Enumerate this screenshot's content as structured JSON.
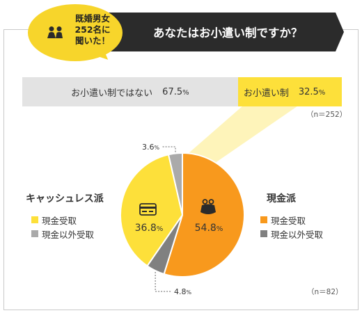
{
  "badge": {
    "line1": "既婚男女",
    "line2": "252名に",
    "line3": "聞いた！"
  },
  "header": {
    "question": "あなたはお小遣い制ですか？"
  },
  "colors": {
    "yellow": "#fde03a",
    "bubble": "#f7d52b",
    "orange": "#f8991d",
    "gray": "#aaaaaa",
    "light_gray": "#e3e3e3",
    "dark": "#2b2b2b"
  },
  "chart_data": [
    {
      "type": "bar",
      "orientation": "horizontal-stacked",
      "categories": [
        "お小遣い制ではない",
        "お小遣い制"
      ],
      "values": [
        67.5,
        32.5
      ],
      "unit": "%",
      "note": "（n＝252）"
    },
    {
      "type": "pie",
      "slices": [
        {
          "label": "現金派",
          "value": 54.8,
          "sub": "現金受取",
          "color": "#f8991d"
        },
        {
          "label": "現金派",
          "value": 4.8,
          "sub": "現金以外受取",
          "color": "#808080"
        },
        {
          "label": "キャッシュレス派",
          "value": 36.8,
          "sub": "現金受取",
          "color": "#fde03a"
        },
        {
          "label": "キャッシュレス派",
          "value": 3.6,
          "sub": "現金以外受取",
          "color": "#aaaaaa"
        }
      ],
      "unit": "%",
      "note": "（n＝82）"
    }
  ],
  "legend_left": {
    "title": "キャッシュレス派",
    "items": [
      {
        "label": "現金受取",
        "color": "#fde03a"
      },
      {
        "label": "現金以外受取",
        "color": "#aaaaaa"
      }
    ]
  },
  "legend_right": {
    "title": "現金派",
    "items": [
      {
        "label": "現金受取",
        "color": "#f8991d"
      },
      {
        "label": "現金以外受取",
        "color": "#808080"
      }
    ]
  },
  "icons": {
    "badge": "people-icon",
    "cashless": "credit-card-icon",
    "cash": "coin-purse-icon"
  }
}
